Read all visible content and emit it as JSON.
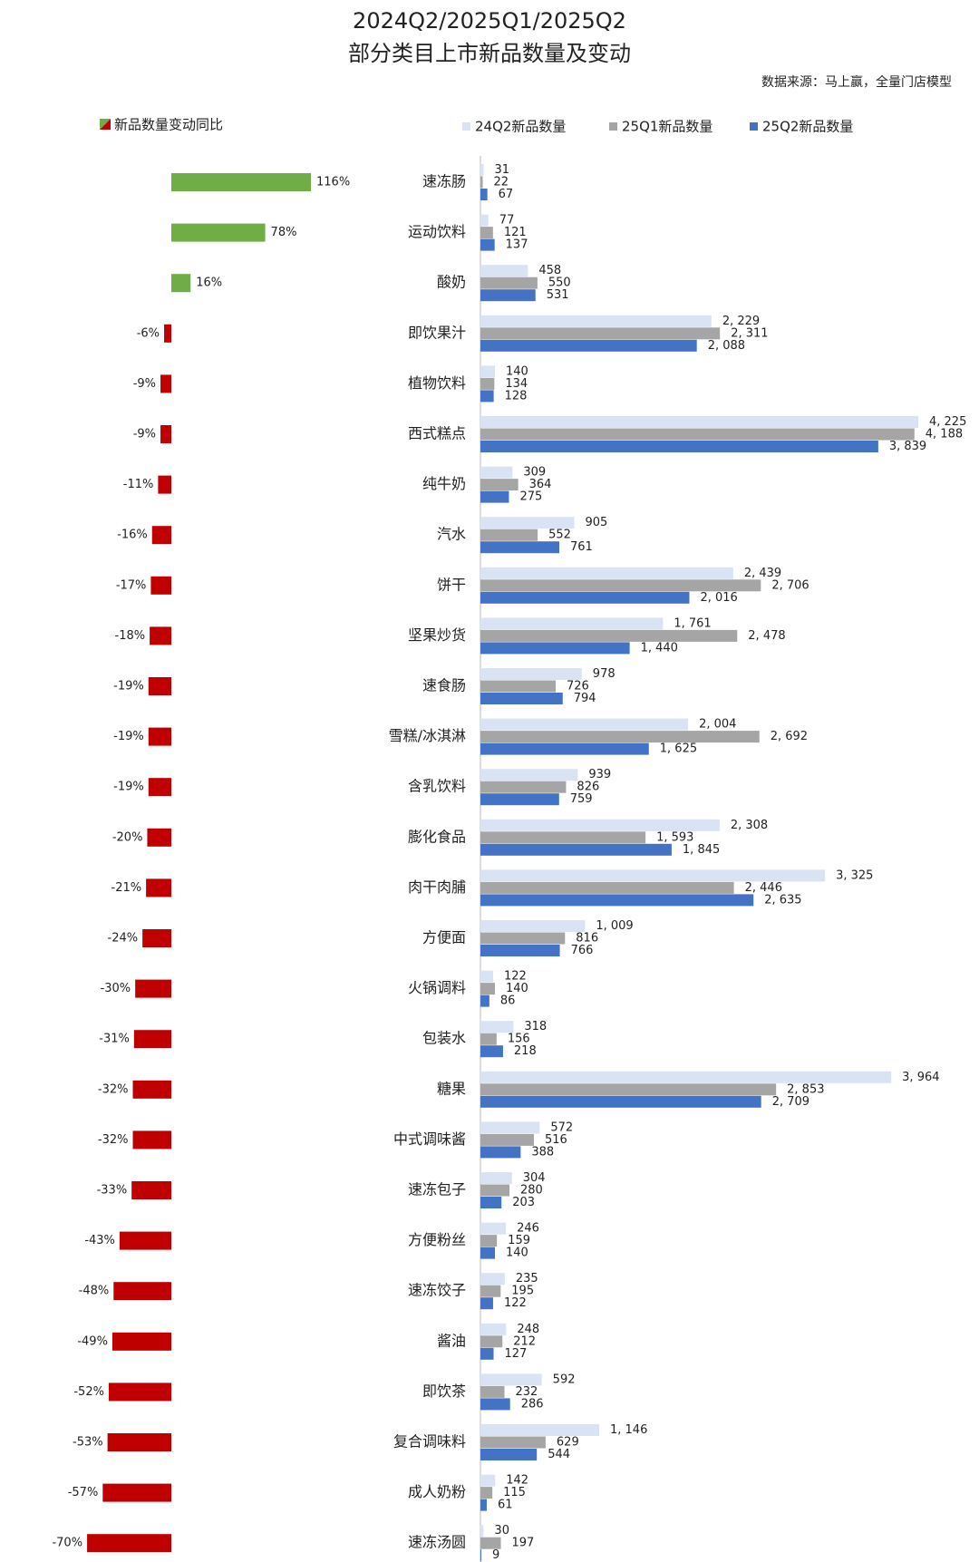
{
  "chart_data": [
    {
      "type": "diverging-bar",
      "legend": "新品数量变动同比",
      "positive_color": "#70ad47",
      "negative_color": "#c00000",
      "values": [
        116,
        78,
        16,
        -6,
        -9,
        -9,
        -11,
        -16,
        -17,
        -18,
        -19,
        -19,
        -19,
        -20,
        -21,
        -24,
        -30,
        -31,
        -32,
        -32,
        -33,
        -43,
        -48,
        -49,
        -52,
        -53,
        -57,
        -70
      ],
      "value_labels": [
        "116%",
        "78%",
        "16%",
        "-6%",
        "-9%",
        "-9%",
        "-11%",
        "-16%",
        "-17%",
        "-18%",
        "-19%",
        "-19%",
        "-19%",
        "-20%",
        "-21%",
        "-24%",
        "-30%",
        "-31%",
        "-32%",
        "-32%",
        "-33%",
        "-43%",
        "-48%",
        "-49%",
        "-52%",
        "-53%",
        "-57%",
        "-70%"
      ]
    },
    {
      "type": "grouped-hbar",
      "title": "2024Q2/2025Q1/2025Q2",
      "subtitle": "部分类目上市新品数量及变动",
      "source": "数据来源：马上赢，全量门店模型",
      "categories": [
        "速冻肠",
        "运动饮料",
        "酸奶",
        "即饮果汁",
        "植物饮料",
        "西式糕点",
        "纯牛奶",
        "汽水",
        "饼干",
        "坚果炒货",
        "速食肠",
        "雪糕/冰淇淋",
        "含乳饮料",
        "膨化食品",
        "肉干肉脯",
        "方便面",
        "火锅调料",
        "包装水",
        "糖果",
        "中式调味酱",
        "速冻包子",
        "方便粉丝",
        "速冻饺子",
        "酱油",
        "即饮茶",
        "复合调味料",
        "成人奶粉",
        "速冻汤圆"
      ],
      "series": [
        {
          "name": "24Q2新品数量",
          "color": "#dae3f3",
          "values": [
            31,
            77,
            458,
            2229,
            140,
            4225,
            309,
            905,
            2439,
            1761,
            978,
            2004,
            939,
            2308,
            3325,
            1009,
            122,
            318,
            3964,
            572,
            304,
            246,
            235,
            248,
            592,
            1146,
            142,
            30
          ],
          "value_labels": [
            "31",
            "77",
            "458",
            "2, 229",
            "140",
            "4, 225",
            "309",
            "905",
            "2, 439",
            "1, 761",
            "978",
            "2, 004",
            "939",
            "2, 308",
            "3, 325",
            "1, 009",
            "122",
            "318",
            "3, 964",
            "572",
            "304",
            "246",
            "235",
            "248",
            "592",
            "1, 146",
            "142",
            "30"
          ]
        },
        {
          "name": "25Q1新品数量",
          "color": "#a5a5a5",
          "values": [
            22,
            121,
            550,
            2311,
            134,
            4188,
            364,
            552,
            2706,
            2478,
            726,
            2692,
            826,
            1593,
            2446,
            816,
            140,
            156,
            2853,
            516,
            280,
            159,
            195,
            212,
            232,
            629,
            115,
            197
          ],
          "value_labels": [
            "22",
            "121",
            "550",
            "2, 311",
            "134",
            "4, 188",
            "364",
            "552",
            "2, 706",
            "2, 478",
            "726",
            "2, 692",
            "826",
            "1, 593",
            "2, 446",
            "816",
            "140",
            "156",
            "2, 853",
            "516",
            "280",
            "159",
            "195",
            "212",
            "232",
            "629",
            "115",
            "197"
          ]
        },
        {
          "name": "25Q2新品数量",
          "color": "#4472c4",
          "values": [
            67,
            137,
            531,
            2088,
            128,
            3839,
            275,
            761,
            2016,
            1440,
            794,
            1625,
            759,
            1845,
            2635,
            766,
            86,
            218,
            2709,
            388,
            203,
            140,
            122,
            127,
            286,
            544,
            61,
            9
          ],
          "value_labels": [
            "67",
            "137",
            "531",
            "2, 088",
            "128",
            "3, 839",
            "275",
            "761",
            "2, 016",
            "1, 440",
            "794",
            "1, 625",
            "759",
            "1, 845",
            "2, 635",
            "766",
            "86",
            "218",
            "2, 709",
            "388",
            "203",
            "140",
            "122",
            "127",
            "286",
            "544",
            "61",
            "9"
          ]
        }
      ]
    }
  ]
}
